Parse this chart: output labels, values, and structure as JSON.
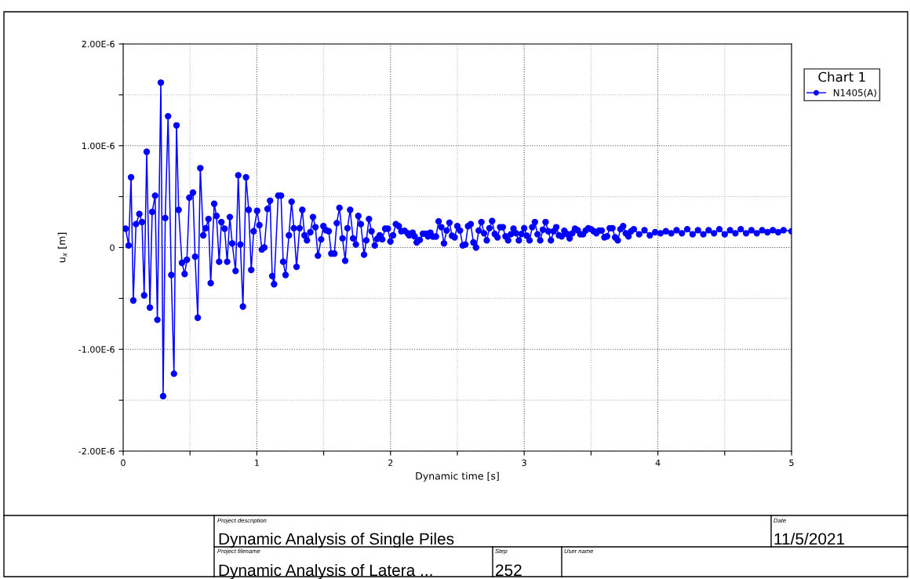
{
  "chart_data": {
    "type": "line",
    "xlabel": "Dynamic time [s]",
    "ylabel": "u$_{x}$ [m]",
    "legend_title": "Chart 1",
    "x": [
      0.018,
      0.041,
      0.059,
      0.076,
      0.096,
      0.121,
      0.141,
      0.157,
      0.176,
      0.2,
      0.217,
      0.239,
      0.256,
      0.282,
      0.299,
      0.315,
      0.336,
      0.36,
      0.38,
      0.399,
      0.415,
      0.44,
      0.46,
      0.477,
      0.495,
      0.522,
      0.538,
      0.558,
      0.577,
      0.599,
      0.618,
      0.638,
      0.655,
      0.681,
      0.698,
      0.718,
      0.735,
      0.759,
      0.778,
      0.798,
      0.816,
      0.841,
      0.861,
      0.877,
      0.896,
      0.919,
      0.939,
      0.958,
      0.976,
      1.002,
      1.019,
      1.037,
      1.056,
      1.08,
      1.099,
      1.115,
      1.129,
      1.16,
      1.181,
      1.197,
      1.215,
      1.24,
      1.26,
      1.277,
      1.297,
      1.32,
      1.34,
      1.357,
      1.375,
      1.4,
      1.42,
      1.438,
      1.457,
      1.481,
      1.498,
      1.518,
      1.538,
      1.557,
      1.58,
      1.598,
      1.618,
      1.641,
      1.661,
      1.678,
      1.698,
      1.72,
      1.741,
      1.759,
      1.778,
      1.802,
      1.819,
      1.839,
      1.858,
      1.882,
      1.9,
      1.919,
      1.938,
      1.96,
      1.98,
      1.999,
      2.019,
      2.04,
      2.062,
      2.081,
      2.105,
      2.128,
      2.14,
      2.165,
      2.18,
      2.196,
      2.219,
      2.242,
      2.263,
      2.28,
      2.298,
      2.317,
      2.34,
      2.36,
      2.38,
      2.4,
      2.42,
      2.441,
      2.46,
      2.48,
      2.5,
      2.52,
      2.54,
      2.56,
      2.58,
      2.6,
      2.62,
      2.64,
      2.66,
      2.68,
      2.7,
      2.72,
      2.74,
      2.76,
      2.78,
      2.8,
      2.82,
      2.84,
      2.86,
      2.88,
      2.9,
      2.92,
      2.94,
      2.96,
      2.98,
      3.0,
      3.02,
      3.04,
      3.06,
      3.08,
      3.1,
      3.12,
      3.14,
      3.16,
      3.18,
      3.2,
      3.22,
      3.24,
      3.26,
      3.28,
      3.3,
      3.32,
      3.34,
      3.36,
      3.38,
      3.4,
      3.42,
      3.44,
      3.46,
      3.48,
      3.5,
      3.52,
      3.54,
      3.56,
      3.58,
      3.6,
      3.62,
      3.64,
      3.66,
      3.68,
      3.7,
      3.72,
      3.74,
      3.76,
      3.78,
      3.8,
      3.82,
      3.86,
      3.9,
      3.94,
      3.98,
      4.02,
      4.06,
      4.1,
      4.14,
      4.18,
      4.22,
      4.26,
      4.3,
      4.34,
      4.38,
      4.42,
      4.46,
      4.5,
      4.54,
      4.58,
      4.62,
      4.66,
      4.7,
      4.74,
      4.78,
      4.82,
      4.86,
      4.9,
      4.94,
      5.0
    ],
    "series": [
      {
        "name": "N1405(A)",
        "color": "#0000ff",
        "values": [
          1.85e-07,
          2e-08,
          6.9e-07,
          -5.2e-07,
          2.3e-07,
          3.3e-07,
          2.5e-07,
          -4.7e-07,
          9.4e-07,
          -5.9e-07,
          3.5e-07,
          5.1e-07,
          -7.1e-07,
          1.62e-06,
          -1.46e-06,
          2.9e-07,
          1.29e-06,
          -2.7e-07,
          -1.24e-06,
          1.2e-06,
          3.7e-07,
          -1.5e-07,
          -2.6e-07,
          -1.2e-07,
          4.9e-07,
          5.4e-07,
          -9e-08,
          -6.9e-07,
          7.8e-07,
          1.2e-07,
          1.9e-07,
          2.8e-07,
          -3.5e-07,
          4.3e-07,
          3.1e-07,
          -1.4e-07,
          2.5e-07,
          1.85e-07,
          -1.4e-07,
          3e-07,
          4e-08,
          -2.3e-07,
          7.1e-07,
          3e-08,
          -5.8e-07,
          6.9e-07,
          3.7e-07,
          -2.2e-07,
          1.6e-07,
          3.6e-07,
          2.2e-07,
          -2e-08,
          0,
          3.8e-07,
          4.6e-07,
          -2.8e-07,
          -3.6e-07,
          5.1e-07,
          5.1e-07,
          -1.4e-07,
          -2.7e-07,
          1.2e-07,
          4.5e-07,
          1.9e-07,
          -1.9e-07,
          1.9e-07,
          3.7e-07,
          1.2e-07,
          7e-08,
          1.5e-07,
          3e-07,
          2e-07,
          -8e-08,
          8e-08,
          2.1e-07,
          1.7e-07,
          1.6e-07,
          -6e-08,
          -6e-08,
          2.4e-07,
          3.9e-07,
          9e-08,
          -1.3e-07,
          1.9e-07,
          3.7e-07,
          9e-08,
          3e-08,
          3.1e-07,
          2.3e-07,
          -7e-08,
          7e-08,
          2.8e-07,
          1.6e-07,
          2e-08,
          8.5e-08,
          1.2e-07,
          8e-08,
          1.85e-07,
          1.85e-07,
          6e-08,
          1.2e-07,
          2.3e-07,
          2.1e-07,
          1.6e-07,
          1.65e-07,
          1.4e-07,
          1.2e-07,
          1.46e-07,
          1.1e-07,
          5e-08,
          7.5e-08,
          1.36e-07,
          1.36e-07,
          1.1e-07,
          1.46e-07,
          1.08e-07,
          1.08e-07,
          2.57e-07,
          2e-07,
          4e-08,
          1.67e-07,
          2.44e-07,
          1.16e-07,
          1e-07,
          2.1e-07,
          1.67e-07,
          2e-08,
          3e-08,
          2.1e-07,
          2.3e-07,
          5e-08,
          0,
          1.67e-07,
          2.5e-07,
          1.4e-07,
          7e-08,
          1.9e-07,
          2.6e-07,
          1.33e-07,
          1e-07,
          2e-07,
          2e-07,
          1.1e-07,
          7e-08,
          1.3e-07,
          1.85e-07,
          1.4e-07,
          7e-08,
          1.33e-07,
          1.9e-07,
          1.16e-07,
          7e-08,
          2e-07,
          2.5e-07,
          1.3e-07,
          7e-08,
          1.75e-07,
          2.5e-07,
          1.6e-07,
          7e-08,
          1.6e-07,
          2e-07,
          1.2e-07,
          1.1e-07,
          1.65e-07,
          1.33e-07,
          9e-08,
          1.4e-07,
          1.85e-07,
          1.7e-07,
          1.3e-07,
          1.3e-07,
          1.67e-07,
          1.9e-07,
          1.8e-07,
          1.6e-07,
          1.4e-07,
          1.67e-07,
          1.67e-07,
          1e-07,
          1.1e-07,
          1.9e-07,
          1.9e-07,
          1e-07,
          7e-08,
          1.8e-07,
          2.1e-07,
          1.4e-07,
          1.1e-07,
          1.6e-07,
          1.8e-07,
          1.3e-07,
          1.7e-07,
          1.2e-07,
          1.5e-07,
          1.4e-07,
          1.6e-07,
          1.4e-07,
          1.7e-07,
          1.4e-07,
          1.8e-07,
          1.3e-07,
          1.7e-07,
          1.3e-07,
          1.7e-07,
          1.4e-07,
          1.8e-07,
          1.3e-07,
          1.7e-07,
          1.4e-07,
          1.8e-07,
          1.4e-07,
          1.7e-07,
          1.4e-07,
          1.7e-07,
          1.5e-07,
          1.7e-07,
          1.5e-07,
          1.7e-07,
          1.6e-07
        ]
      }
    ],
    "xlim": [
      0,
      5
    ],
    "xticks": [
      0,
      {
        "value": 0.5,
        "label": null
      },
      1,
      {
        "value": 1.5,
        "label": null
      },
      2,
      {
        "value": 2.5,
        "label": null
      },
      3,
      {
        "value": 3.5,
        "label": null
      },
      4,
      {
        "value": 4.5,
        "label": null
      },
      5
    ],
    "ylim": [
      -2e-06,
      2e-06
    ],
    "yticks": [
      {
        "value": -2e-06,
        "label": "-2.00E-6"
      },
      {
        "value": -1.5e-06,
        "label": null
      },
      {
        "value": -1e-06,
        "label": "-1.00E-6"
      },
      {
        "value": -5e-07,
        "label": null
      },
      {
        "value": 0,
        "label": "0"
      },
      {
        "value": 5e-07,
        "label": null
      },
      {
        "value": 1e-06,
        "label": "1.00E-6"
      },
      {
        "value": 1.5e-06,
        "label": null
      },
      {
        "value": 2e-06,
        "label": "2.00E-6"
      }
    ],
    "grid": true,
    "legend": "top right",
    "marker": "circle",
    "line_style": "solid",
    "annotations": [
      "Project description",
      "Dynamic Analysis of Single Piles",
      "Date",
      "11/5/2021",
      "Project filename",
      "Dynamic Analysis of Latera ...",
      "Step",
      "252",
      "User name"
    ]
  }
}
